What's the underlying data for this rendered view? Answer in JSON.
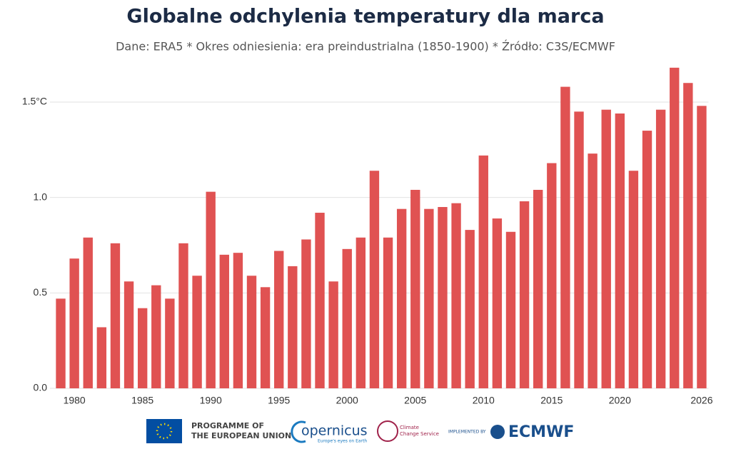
{
  "chart_data": {
    "type": "bar",
    "title": "Globalne odchylenia temperatury dla marca",
    "subtitle": "Dane: ERA5 * Okres odniesienia: era preindustrialna (1850-1900) * Źródło: C3S/ECMWF",
    "x": [
      1979,
      1980,
      1981,
      1982,
      1983,
      1984,
      1985,
      1986,
      1987,
      1988,
      1989,
      1990,
      1991,
      1992,
      1993,
      1994,
      1995,
      1996,
      1997,
      1998,
      1999,
      2000,
      2001,
      2002,
      2003,
      2004,
      2005,
      2006,
      2007,
      2008,
      2009,
      2010,
      2011,
      2012,
      2013,
      2014,
      2015,
      2016,
      2017,
      2018,
      2019,
      2020,
      2021,
      2022,
      2023,
      2024,
      2025,
      2026
    ],
    "values": [
      0.47,
      0.68,
      0.79,
      0.32,
      0.76,
      0.56,
      0.42,
      0.54,
      0.47,
      0.76,
      0.59,
      1.03,
      0.7,
      0.71,
      0.59,
      0.53,
      0.72,
      0.64,
      0.78,
      0.92,
      0.56,
      0.73,
      0.79,
      1.14,
      0.79,
      0.94,
      1.04,
      0.94,
      0.95,
      0.97,
      0.83,
      1.22,
      0.89,
      0.82,
      0.98,
      1.04,
      1.18,
      1.58,
      1.45,
      1.23,
      1.46,
      1.44,
      1.14,
      1.35,
      1.46,
      1.68,
      1.6,
      1.48
    ],
    "color": "#e05252",
    "xlim": [
      1978.6,
      2026.5
    ],
    "xticks": [
      1980,
      1985,
      1990,
      1995,
      2000,
      2005,
      2010,
      2015,
      2020,
      2026
    ],
    "ylim": [
      0,
      1.7
    ],
    "yticks": [
      {
        "value": 0,
        "label": "0.0"
      },
      {
        "value": 0.5,
        "label": "0.5"
      },
      {
        "value": 1,
        "label": "1.0"
      },
      {
        "value": 1.5,
        "label": "1.5°C"
      }
    ],
    "grid": true
  },
  "footer": {
    "eu": "PROGRAMME OF",
    "eu2": "THE EUROPEAN UNION",
    "copernicus": "opernicus",
    "copernicus_tag": "Europe's eyes on Earth",
    "c3s": "Climate",
    "c3s2": "Change Service",
    "implemented": "IMPLEMENTED BY",
    "ecmwf": "ECMWF"
  }
}
